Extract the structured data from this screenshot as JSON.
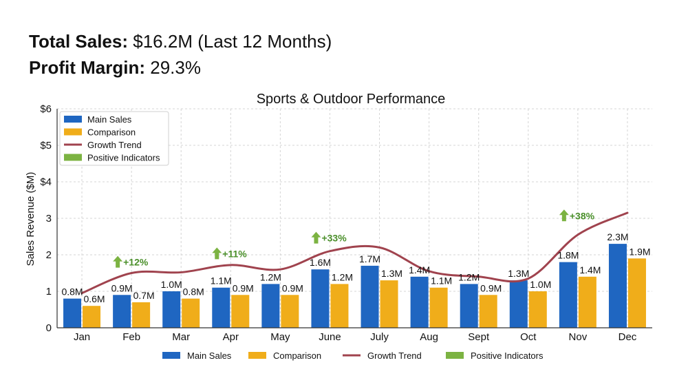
{
  "kpis": {
    "total_sales_label": "Total Sales:",
    "total_sales_value": "$16.2M (Last 12 Months)",
    "profit_margin_label": "Profit Margin:",
    "profit_margin_value": "29.3%"
  },
  "chart_data": {
    "type": "bar",
    "title": "Sports & Outdoor Performance",
    "ylabel": "Sales Revenue ($M)",
    "xlabel": "",
    "ylim": [
      0,
      6
    ],
    "yticks": [
      0,
      1,
      2,
      3,
      4,
      5,
      6
    ],
    "ytick_labels": [
      "0",
      "1",
      "2",
      "3",
      "$4",
      "$5",
      "$6"
    ],
    "categories": [
      "Jan",
      "Feb",
      "Mar",
      "Apr",
      "May",
      "June",
      "July",
      "Aug",
      "Sept",
      "Oct",
      "Nov",
      "Dec"
    ],
    "series": [
      {
        "name": "Main Sales",
        "type": "bar",
        "color": "#1f66c1",
        "values": [
          0.8,
          0.9,
          1.0,
          1.1,
          1.2,
          1.6,
          1.7,
          1.4,
          1.2,
          1.3,
          1.8,
          2.3
        ],
        "labels": [
          "0.8M",
          "0.9M",
          "1.0M",
          "1.1M",
          "1.2M",
          "1.6M",
          "1.7M",
          "1.4M",
          "1.2M",
          "1.3M",
          "1.8M",
          "2.3M"
        ]
      },
      {
        "name": "Comparison",
        "type": "bar",
        "color": "#f0ad1a",
        "values": [
          0.6,
          0.7,
          0.8,
          0.9,
          0.9,
          1.2,
          1.3,
          1.1,
          0.9,
          1.0,
          1.4,
          1.9
        ],
        "labels": [
          "0.6M",
          "0.7M",
          "0.8M",
          "0.9M",
          "0.9M",
          "1.2M",
          "1.3M",
          "1.1M",
          "0.9M",
          "1.0M",
          "1.4M",
          "1.9M"
        ]
      },
      {
        "name": "Growth Trend",
        "type": "line",
        "color": "#a0434e",
        "values": [
          0.95,
          1.5,
          1.52,
          1.72,
          1.6,
          2.1,
          2.2,
          1.55,
          1.4,
          1.35,
          2.55,
          3.15
        ]
      },
      {
        "name": "Positive Indicators",
        "type": "marker",
        "color": "#7cb342"
      }
    ],
    "annotations": [
      {
        "category": "Feb",
        "text": "+12%",
        "y": 1.8
      },
      {
        "category": "Apr",
        "text": "+11%",
        "y": 2.03
      },
      {
        "category": "June",
        "text": "+33%",
        "y": 2.46
      },
      {
        "category": "Nov",
        "text": "+38%",
        "y": 3.07
      }
    ],
    "grid": true,
    "legend_inner": "top-left",
    "legend_bottom": "bottom-center"
  }
}
